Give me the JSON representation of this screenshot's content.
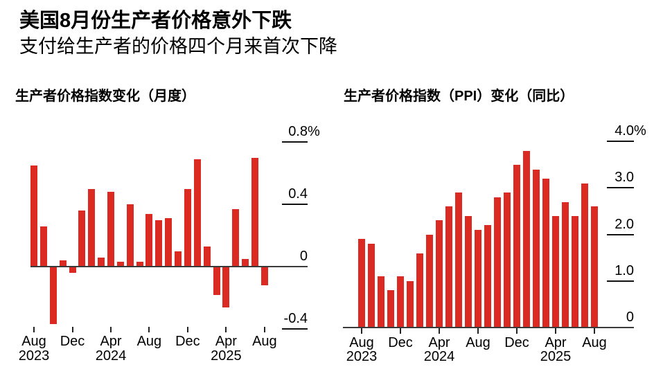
{
  "header": {
    "title": "美国8月份生产者价格意外下跌",
    "subtitle": "支付给生产者的价格四个月来首次下降"
  },
  "colors": {
    "bar": "#da2a21",
    "axis": "#3a3a3a",
    "tick": "#121212",
    "text": "#000000",
    "background": "#ffffff"
  },
  "chart_data": [
    {
      "type": "bar",
      "title": "生产者价格指数变化（月度）",
      "unit": "%",
      "grid": false,
      "legend": null,
      "ylim": [
        -0.4,
        0.8
      ],
      "categories": [
        "Aug 2023",
        "Sep 2023",
        "Oct 2023",
        "Nov 2023",
        "Dec 2023",
        "Jan 2024",
        "Feb 2024",
        "Mar 2024",
        "Apr 2024",
        "May 2024",
        "Jun 2024",
        "Jul 2024",
        "Aug 2024",
        "Sep 2024",
        "Oct 2024",
        "Nov 2024",
        "Dec 2024",
        "Jan 2025",
        "Feb 2025",
        "Mar 2025",
        "Apr 2025",
        "May 2025",
        "Jun 2025",
        "Jul 2025",
        "Aug 2025"
      ],
      "values": [
        0.65,
        0.26,
        -0.37,
        0.04,
        -0.04,
        0.36,
        0.5,
        0.06,
        0.48,
        0.03,
        0.4,
        0.03,
        0.34,
        0.3,
        0.31,
        0.1,
        0.5,
        0.69,
        0.13,
        -0.18,
        -0.26,
        0.37,
        0.05,
        0.7,
        -0.12
      ],
      "yticks": [
        {
          "value": 0.8,
          "label": "0.8",
          "suffix": "%"
        },
        {
          "value": 0.4,
          "label": "0.4",
          "suffix": ""
        },
        {
          "value": 0,
          "label": "0",
          "suffix": ""
        },
        {
          "value": -0.4,
          "label": "-0.4",
          "suffix": ""
        }
      ],
      "xticks": [
        {
          "index": 0,
          "label": "Aug",
          "year": "2023"
        },
        {
          "index": 4,
          "label": "Dec",
          "year": ""
        },
        {
          "index": 8,
          "label": "Apr",
          "year": "2024"
        },
        {
          "index": 12,
          "label": "Aug",
          "year": ""
        },
        {
          "index": 16,
          "label": "Dec",
          "year": ""
        },
        {
          "index": 20,
          "label": "Apr",
          "year": "2025"
        },
        {
          "index": 24,
          "label": "Aug",
          "year": ""
        }
      ]
    },
    {
      "type": "bar",
      "title": "生产者价格指数（PPI）变化（同比）",
      "unit": "%",
      "grid": false,
      "legend": null,
      "ylim": [
        0,
        4.0
      ],
      "categories": [
        "Aug 2023",
        "Sep 2023",
        "Oct 2023",
        "Nov 2023",
        "Dec 2023",
        "Jan 2024",
        "Feb 2024",
        "Mar 2024",
        "Apr 2024",
        "May 2024",
        "Jun 2024",
        "Jul 2024",
        "Aug 2024",
        "Sep 2024",
        "Oct 2024",
        "Nov 2024",
        "Dec 2024",
        "Jan 2025",
        "Feb 2025",
        "Mar 2025",
        "Apr 2025",
        "May 2025",
        "Jun 2025",
        "Jul 2025",
        "Aug 2025"
      ],
      "values": [
        1.9,
        1.8,
        1.1,
        0.8,
        1.1,
        1.0,
        1.6,
        2.0,
        2.3,
        2.6,
        2.9,
        2.4,
        2.1,
        2.2,
        2.8,
        2.9,
        3.5,
        3.8,
        3.4,
        3.2,
        2.4,
        2.7,
        2.4,
        3.1,
        2.6
      ],
      "yticks": [
        {
          "value": 4,
          "label": "4.0",
          "suffix": "%"
        },
        {
          "value": 3,
          "label": "3.0",
          "suffix": ""
        },
        {
          "value": 2,
          "label": "2.0",
          "suffix": ""
        },
        {
          "value": 1,
          "label": "1.0",
          "suffix": ""
        },
        {
          "value": 0,
          "label": "0",
          "suffix": ""
        }
      ],
      "xticks": [
        {
          "index": 0,
          "label": "Aug",
          "year": "2023"
        },
        {
          "index": 4,
          "label": "Dec",
          "year": ""
        },
        {
          "index": 8,
          "label": "Apr",
          "year": "2024"
        },
        {
          "index": 12,
          "label": "Aug",
          "year": ""
        },
        {
          "index": 16,
          "label": "Dec",
          "year": ""
        },
        {
          "index": 20,
          "label": "Apr",
          "year": "2025"
        },
        {
          "index": 24,
          "label": "Aug",
          "year": ""
        }
      ]
    }
  ]
}
